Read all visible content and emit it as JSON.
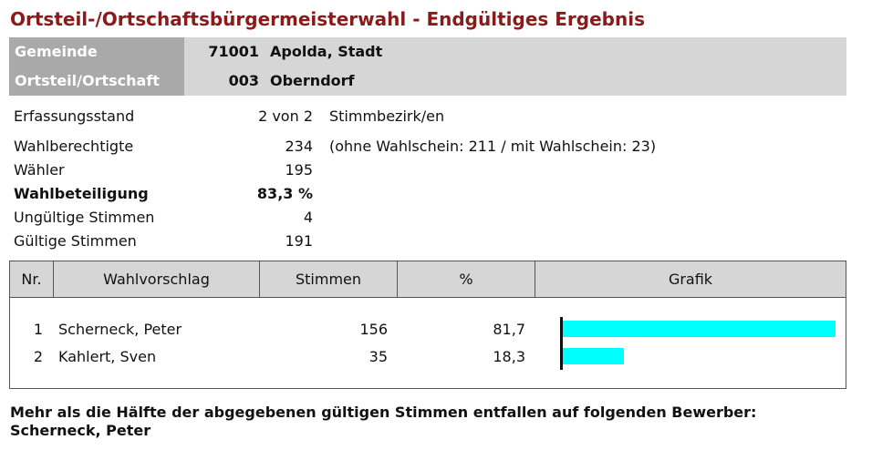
{
  "title": "Ortsteil-/Ortschaftsbürgermeisterwahl - Endgültiges Ergebnis",
  "header": {
    "gemeinde": {
      "label": "Gemeinde",
      "code": "71001",
      "name": "Apolda, Stadt"
    },
    "ortsteil": {
      "label": "Ortsteil/Ortschaft",
      "code": "003",
      "name": "Oberndorf"
    }
  },
  "stats": {
    "erfassung": {
      "label": "Erfassungsstand",
      "value": "2 von 2",
      "note": "Stimmbezirk/en"
    },
    "wahlberechtigte": {
      "label": "Wahlberechtigte",
      "value": "234",
      "note": "(ohne Wahlschein: 211 / mit Wahlschein: 23)"
    },
    "waehler": {
      "label": "Wähler",
      "value": "195"
    },
    "wahlbeteiligung": {
      "label": "Wahlbeteiligung",
      "value": "83,3 %"
    },
    "ungueltige": {
      "label": "Ungültige Stimmen",
      "value": "4"
    },
    "gueltige": {
      "label": "Gültige Stimmen",
      "value": "191"
    }
  },
  "table": {
    "headers": {
      "nr": "Nr.",
      "wahlvorschlag": "Wahlvorschlag",
      "stimmen": "Stimmen",
      "prozent": "%",
      "grafik": "Grafik"
    },
    "rows": [
      {
        "nr": "1",
        "name": "Scherneck, Peter",
        "votes": "156",
        "pct": "81,7",
        "share": 81.7
      },
      {
        "nr": "2",
        "name": "Kahlert, Sven",
        "votes": "35",
        "pct": "18,3",
        "share": 18.3
      }
    ]
  },
  "colors": {
    "title": "#8b1a1a",
    "bar": "#00ffff",
    "header_bg": "#d6d6d6",
    "label_bg": "#a9a9a9"
  },
  "footer": {
    "line1": "Mehr als die Hälfte der abgegebenen gültigen Stimmen entfallen auf folgenden Bewerber:",
    "line2": "Scherneck, Peter"
  }
}
